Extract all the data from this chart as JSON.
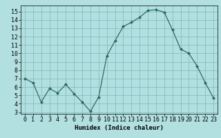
{
  "x": [
    0,
    1,
    2,
    3,
    4,
    5,
    6,
    7,
    8,
    9,
    10,
    11,
    12,
    13,
    14,
    15,
    16,
    17,
    18,
    19,
    20,
    21,
    22,
    23
  ],
  "y": [
    7,
    6.5,
    4.2,
    5.8,
    5.3,
    6.3,
    5.2,
    4.2,
    3.1,
    4.8,
    9.7,
    11.5,
    13.2,
    13.7,
    14.3,
    15.1,
    15.2,
    14.9,
    12.8,
    10.5,
    10.0,
    8.5,
    6.5,
    4.7
  ],
  "xlabel": "Humidex (Indice chaleur)",
  "xlim": [
    -0.5,
    23.5
  ],
  "ylim": [
    2.8,
    15.7
  ],
  "yticks": [
    3,
    4,
    5,
    6,
    7,
    8,
    9,
    10,
    11,
    12,
    13,
    14,
    15
  ],
  "xticks": [
    0,
    1,
    2,
    3,
    4,
    5,
    6,
    7,
    8,
    9,
    10,
    11,
    12,
    13,
    14,
    15,
    16,
    17,
    18,
    19,
    20,
    21,
    22,
    23
  ],
  "line_color": "#2e6b5e",
  "marker": "D",
  "marker_size": 2.0,
  "bg_color": "#b2e0e0",
  "grid_color": "#7ab8b8",
  "label_fontsize": 6.5,
  "tick_fontsize": 6.0
}
